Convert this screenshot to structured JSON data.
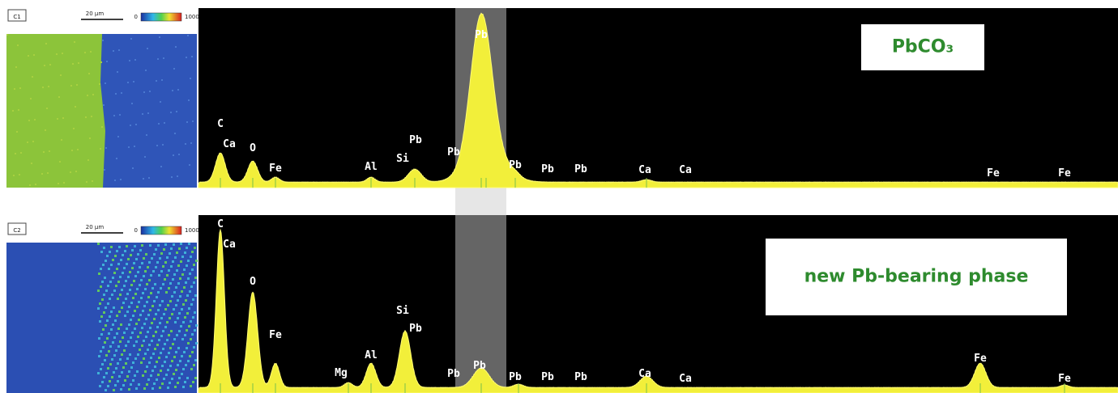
{
  "panels": [
    {
      "map_label": "C1",
      "scale_bar": "20 µm",
      "colorbar_min": "0",
      "colorbar_max": "1000",
      "phase": "PbCO₃",
      "peaks": [
        "C",
        "Ca",
        "O",
        "Fe",
        "Al",
        "Si",
        "Pb",
        "Pb",
        "Pb",
        "Pb",
        "Pb",
        "Pb",
        "Ca",
        "Ca",
        "Fe",
        "Fe"
      ]
    },
    {
      "map_label": "C2",
      "scale_bar": "20 µm",
      "colorbar_min": "0",
      "colorbar_max": "1000",
      "phase": "new Pb-bearing phase",
      "peaks": [
        "C",
        "Ca",
        "O",
        "Fe",
        "Mg",
        "Al",
        "Si",
        "Pb",
        "Pb",
        "Pb",
        "Pb",
        "Pb",
        "Pb",
        "Ca",
        "Ca",
        "Fe",
        "Fe"
      ]
    }
  ]
}
